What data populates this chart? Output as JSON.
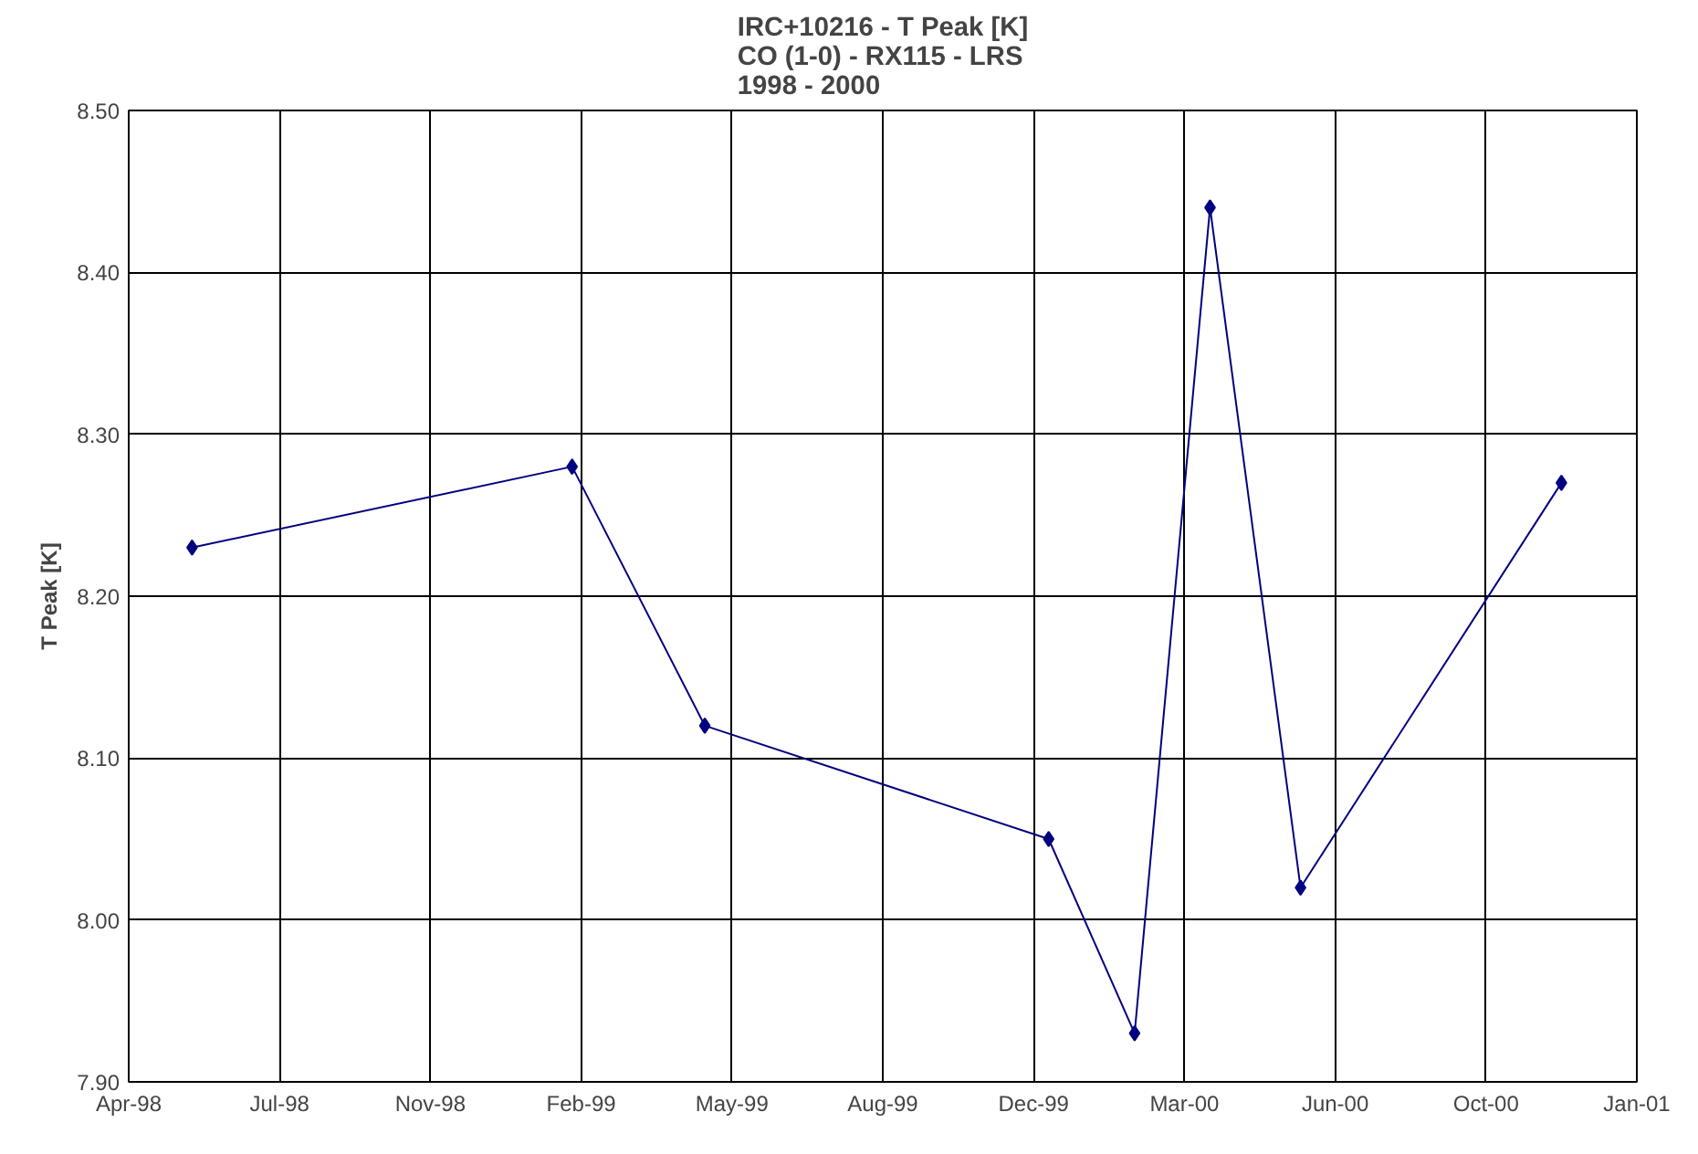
{
  "chart_data": {
    "type": "line",
    "title": "IRC+10216 - T Peak [K]\nCO (1-0) - RX115 - LRS\n1998 - 2000",
    "ylabel": "T Peak [K]",
    "x": [
      "1998-05-27",
      "1999-02-03",
      "1999-05-02",
      "1999-12-16",
      "2000-02-11",
      "2000-04-01",
      "2000-05-31",
      "2000-11-20"
    ],
    "series": [
      {
        "color": "#000080",
        "values": [
          8.23,
          8.28,
          8.12,
          8.05,
          7.93,
          8.44,
          8.02,
          8.27
        ]
      }
    ],
    "xlim": [
      "1998-04-15",
      "2001-01-09"
    ],
    "xticks": [
      {
        "value": "1998-04-15",
        "label": "Apr-98"
      },
      {
        "value": "1998-07-24",
        "label": "Jul-98"
      },
      {
        "value": "1998-11-01",
        "label": "Nov-98"
      },
      {
        "value": "1999-02-09",
        "label": "Feb-99"
      },
      {
        "value": "1999-05-20",
        "label": "May-99"
      },
      {
        "value": "1999-08-28",
        "label": "Aug-99"
      },
      {
        "value": "1999-12-06",
        "label": "Dec-99"
      },
      {
        "value": "2000-03-15",
        "label": "Mar-00"
      },
      {
        "value": "2000-06-23",
        "label": "Jun-00"
      },
      {
        "value": "2000-10-01",
        "label": "Oct-00"
      },
      {
        "value": "2001-01-09",
        "label": "Jan-01"
      }
    ],
    "ylim": [
      7.9,
      8.5
    ],
    "yticks": [
      {
        "value": 7.9,
        "label": "7.90"
      },
      {
        "value": 8.0,
        "label": "8.00"
      },
      {
        "value": 8.1,
        "label": "8.10"
      },
      {
        "value": 8.2,
        "label": "8.20"
      },
      {
        "value": 8.3,
        "label": "8.30"
      },
      {
        "value": 8.4,
        "label": "8.40"
      },
      {
        "value": 8.5,
        "label": "8.50"
      }
    ],
    "grid": true,
    "marker": "diamond",
    "line_style": "solid"
  }
}
